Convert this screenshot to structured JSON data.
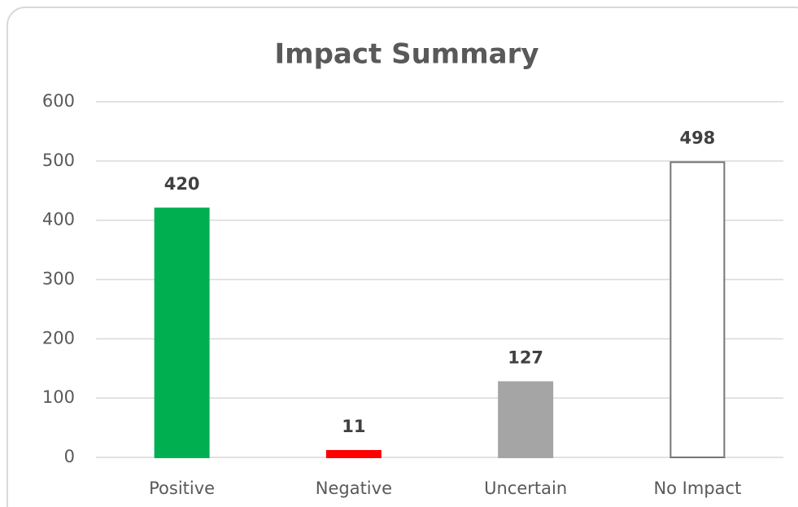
{
  "chart_data": {
    "type": "bar",
    "title": "Impact Summary",
    "categories": [
      "Positive",
      "Negative",
      "Uncertain",
      "No Impact"
    ],
    "values": [
      420,
      11,
      127,
      498
    ],
    "colors": [
      "#00b050",
      "#ff0000",
      "#a5a5a5",
      "#ffffff"
    ],
    "edgecolors": [
      "#00b050",
      "#ff0000",
      "#a5a5a5",
      "#767676"
    ],
    "ylim": [
      0,
      600
    ],
    "yticks": [
      0,
      100,
      200,
      300,
      400,
      500,
      600
    ],
    "grid": true
  }
}
